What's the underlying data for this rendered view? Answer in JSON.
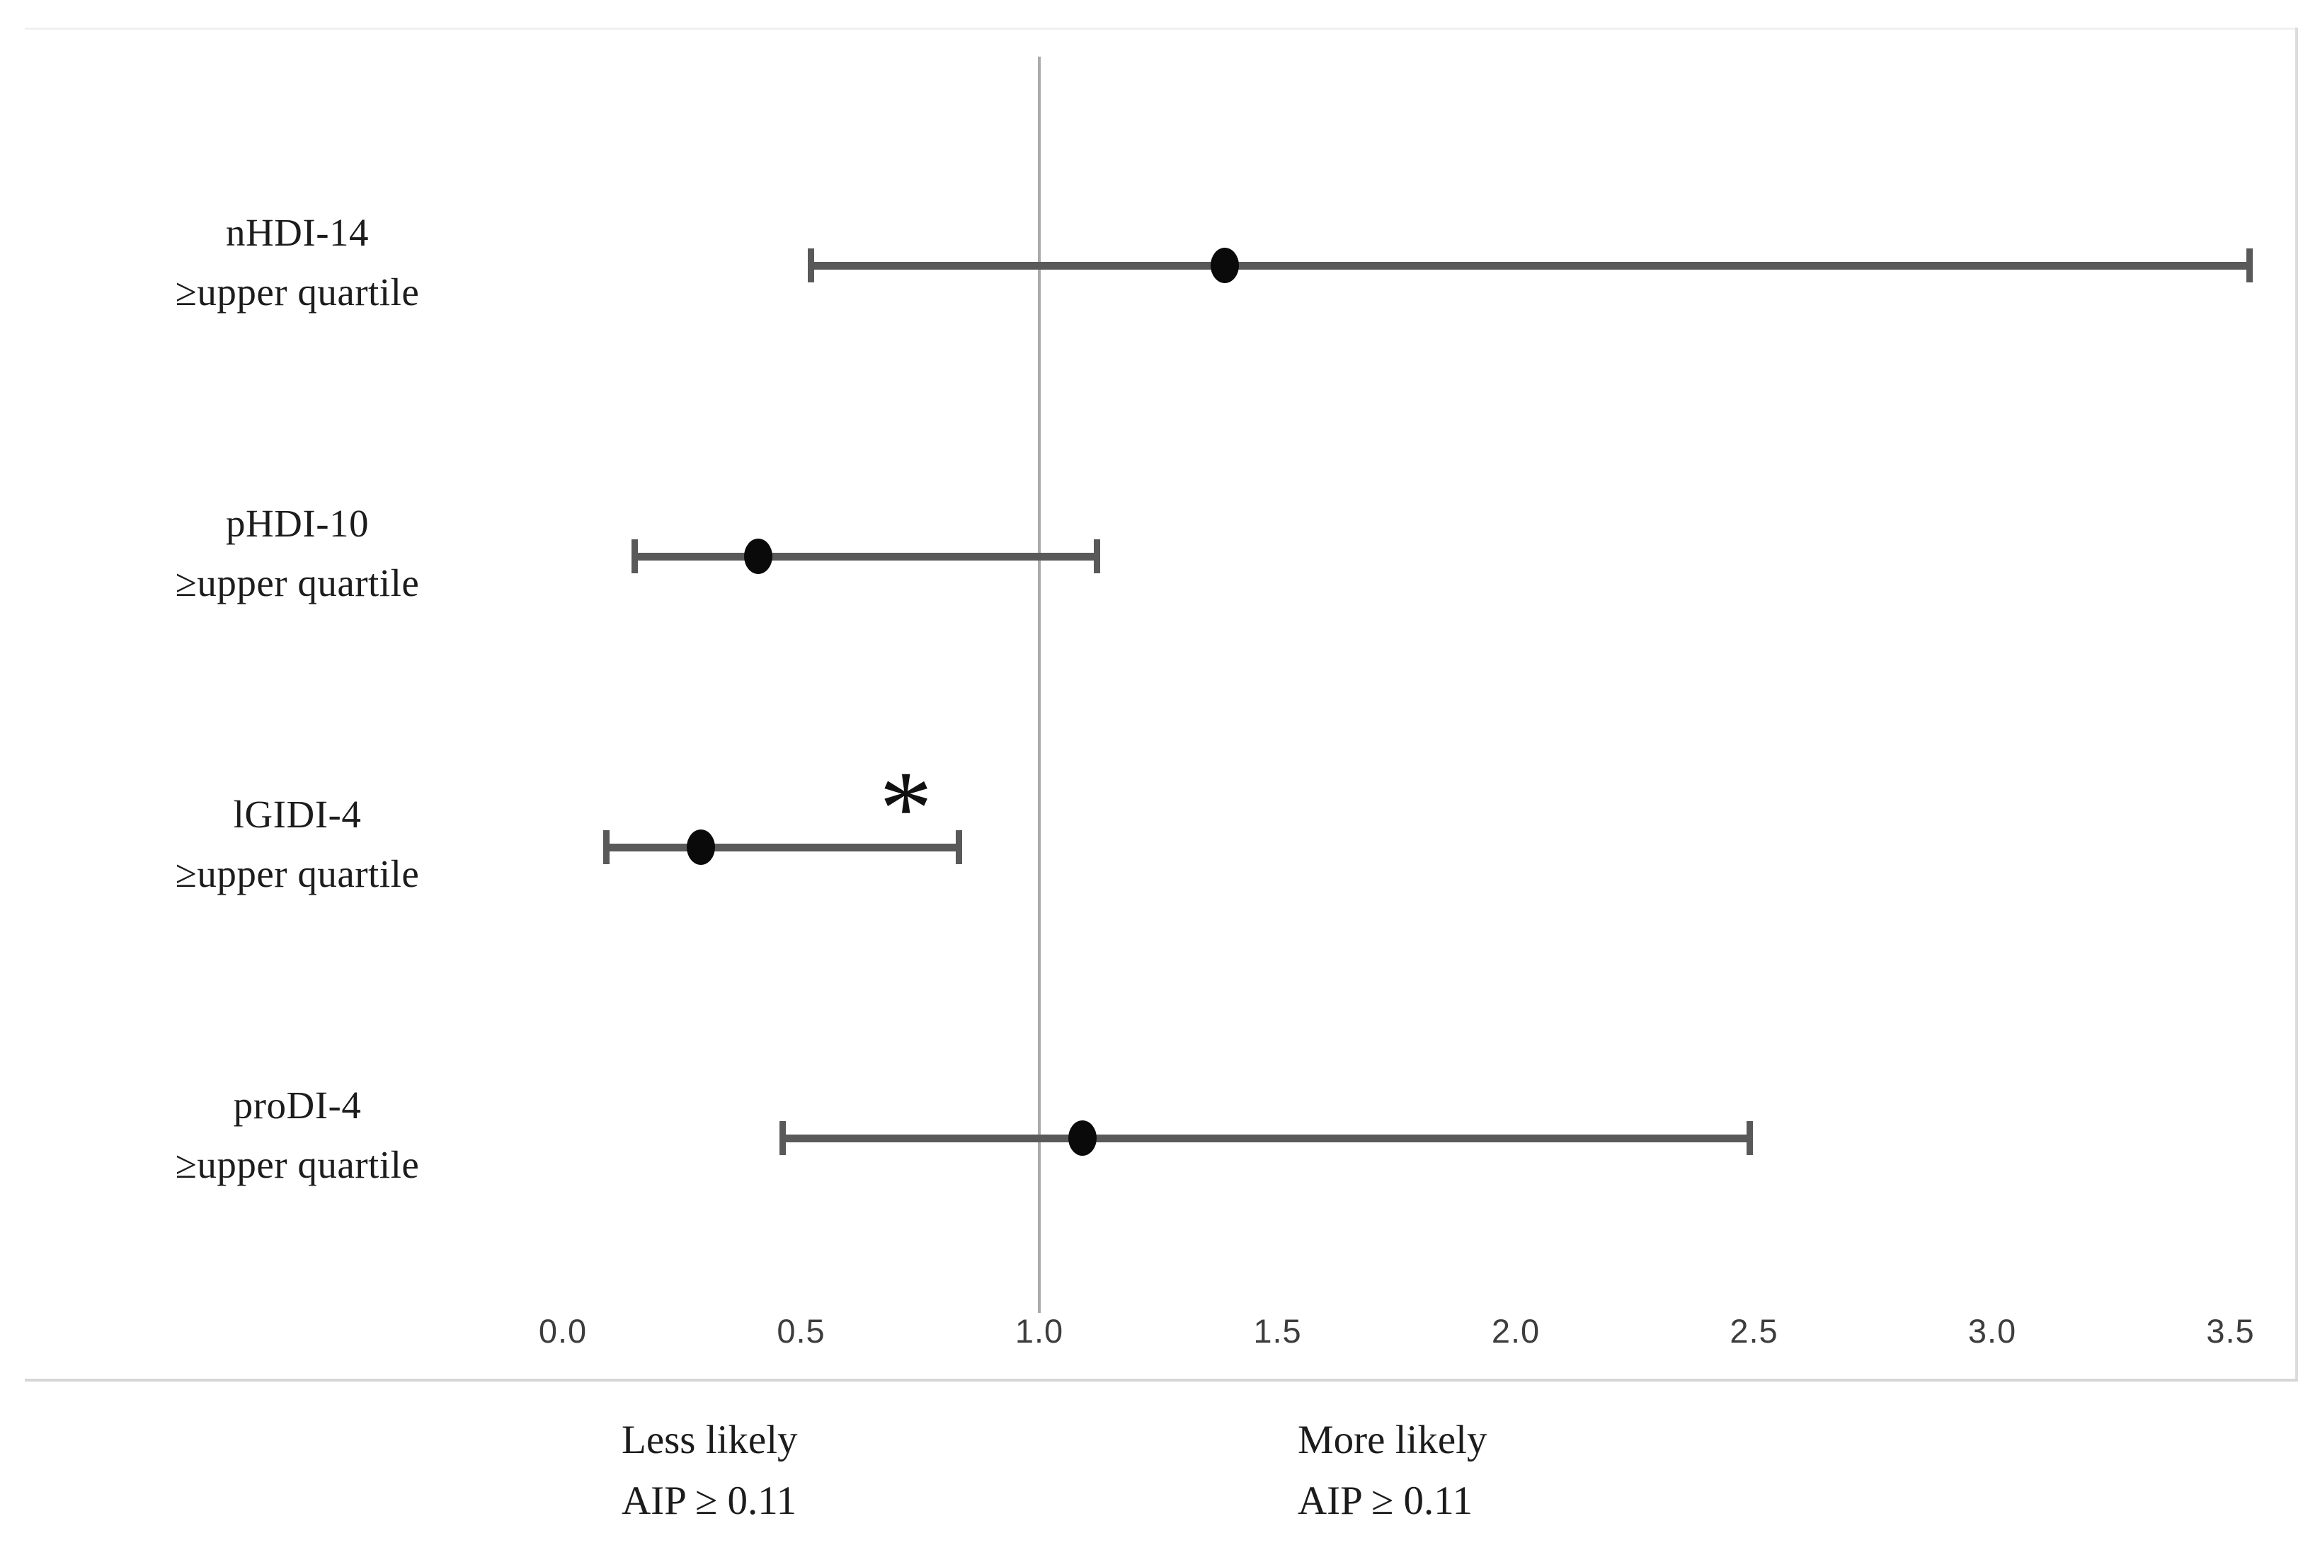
{
  "chart_data": {
    "type": "scatter",
    "subtype": "forest-plot-error-bars",
    "title": "",
    "xlabel": "",
    "ylabel": "",
    "x_axis": {
      "ticks": [
        0.0,
        0.5,
        1.0,
        1.5,
        2.0,
        2.5,
        3.0,
        3.5
      ],
      "tick_labels": [
        "0.0",
        "0.5",
        "1.0",
        "1.5",
        "2.0",
        "2.5",
        "3.0",
        "3.5"
      ],
      "xlim": [
        0.0,
        3.64
      ]
    },
    "reference_line_x": 1.0,
    "grid": false,
    "rows": [
      {
        "label_line1": "nHDI-14",
        "label_line2": "≥upper quartile",
        "estimate": 1.39,
        "ci_low": 0.52,
        "ci_high": 3.54,
        "significant": false
      },
      {
        "label_line1": "pHDI-10",
        "label_line2": "≥upper quartile",
        "estimate": 0.41,
        "ci_low": 0.15,
        "ci_high": 1.12,
        "significant": false
      },
      {
        "label_line1": "lGIDI-4",
        "label_line2": "≥upper quartile",
        "estimate": 0.29,
        "ci_low": 0.09,
        "ci_high": 0.83,
        "significant": true,
        "significance_marker_x": 0.72
      },
      {
        "label_line1": "proDI-4",
        "label_line2": "≥upper quartile",
        "estimate": 1.09,
        "ci_low": 0.46,
        "ci_high": 2.49,
        "significant": false
      }
    ],
    "significance_marker": "*",
    "annotations": {
      "left_note_line1": "Less likely",
      "left_note_line2": "AIP ≥ 0.11",
      "right_note_line1": "More likely",
      "right_note_line2": "AIP ≥ 0.11"
    }
  },
  "colors": {
    "error_bar": "#595959",
    "point": "#0a0a0a",
    "reference_line": "#aaaaaa",
    "plot_border": "#d6d6d6",
    "text": "#1c1c1c"
  }
}
